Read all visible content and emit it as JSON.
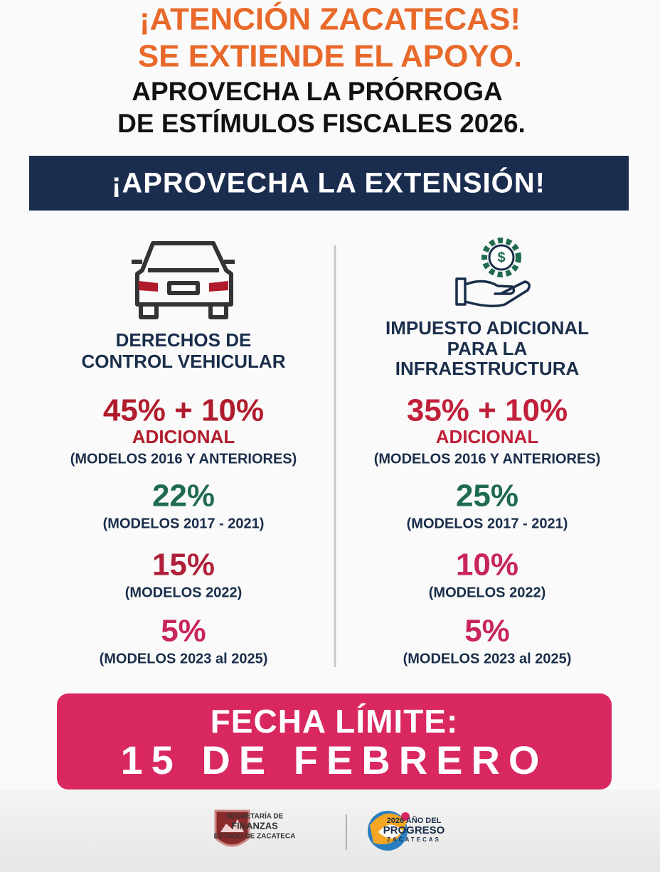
{
  "header": {
    "lines": [
      "¡ATENCIÓN ZACATECAS!",
      "SE EXTIENDE EL APOYO.",
      "APROVECHA LA PRÓRROGA",
      "DE ESTÍMULOS FISCALES 2026."
    ]
  },
  "banner": "¡APROVECHA LA EXTENSIÓN!",
  "columns": [
    {
      "title": [
        "DERECHOS DE",
        "CONTROL VEHICULAR"
      ],
      "rates": [
        {
          "value": "45% + 10%",
          "extra": "ADICIONAL",
          "note": "(MODELOS 2016 Y ANTERIORES)"
        },
        {
          "value": "22%",
          "note": "(MODELOS 2017 - 2021)"
        },
        {
          "value": "15%",
          "note": "(MODELOS 2022)"
        },
        {
          "value": "5%",
          "note": "(MODELOS 2023 al 2025)"
        }
      ]
    },
    {
      "title": [
        "IMPUESTO ADICIONAL",
        "PARA LA",
        "INFRAESTRUCTURA"
      ],
      "rates": [
        {
          "value": "35% + 10%",
          "extra": "ADICIONAL",
          "note": "(MODELOS 2016 Y ANTERIORES)"
        },
        {
          "value": "25%",
          "note": "(MODELOS 2017 - 2021)"
        },
        {
          "value": "10%",
          "note": "(MODELOS 2022)"
        },
        {
          "value": "5%",
          "note": "(MODELOS 2023 al 2025)"
        }
      ]
    }
  ],
  "deadline": {
    "label": "FECHA LÍMITE:",
    "date": "15 DE FEBRERO"
  },
  "footer": {
    "secretaria": [
      "SECRETARÍA DE",
      "FINANZAS",
      "ESTADO DE ZACATECA"
    ],
    "progreso": [
      "2026 AÑO DEL",
      "PROGRESO",
      "ZACATECAS"
    ]
  }
}
